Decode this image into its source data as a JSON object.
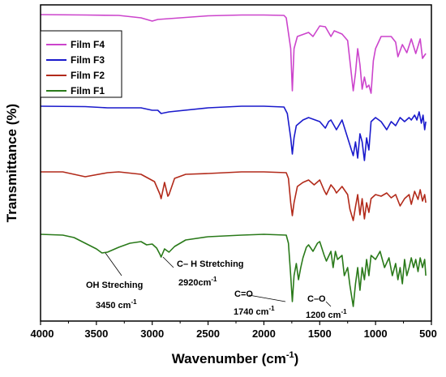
{
  "chart_data": {
    "type": "line",
    "xlabel": "Wavenumber (cm",
    "xlabel_sup": "-1",
    "xlabel_end": ")",
    "ylabel": "Transmittance (%)",
    "xlim": [
      4000,
      500
    ],
    "x_reversed": true,
    "xticks": [
      4000,
      3500,
      3000,
      2500,
      2000,
      1500,
      1000,
      500
    ],
    "yticks_labeled": false,
    "grid": false,
    "legend_position": "top-left",
    "series": [
      {
        "name": "Film F4",
        "color": "#cc44cc",
        "points": [
          [
            4000,
            18
          ],
          [
            3600,
            18.5
          ],
          [
            3300,
            19
          ],
          [
            3100,
            22
          ],
          [
            3000,
            26
          ],
          [
            2950,
            24
          ],
          [
            2850,
            23
          ],
          [
            2500,
            19.5
          ],
          [
            2200,
            18.5
          ],
          [
            2000,
            18.5
          ],
          [
            1820,
            19
          ],
          [
            1800,
            22
          ],
          [
            1760,
            60
          ],
          [
            1745,
            112
          ],
          [
            1730,
            60
          ],
          [
            1700,
            45
          ],
          [
            1600,
            40
          ],
          [
            1560,
            45
          ],
          [
            1500,
            32
          ],
          [
            1450,
            33
          ],
          [
            1400,
            45
          ],
          [
            1370,
            38
          ],
          [
            1300,
            42
          ],
          [
            1250,
            50
          ],
          [
            1230,
            75
          ],
          [
            1200,
            112
          ],
          [
            1180,
            90
          ],
          [
            1160,
            60
          ],
          [
            1140,
            80
          ],
          [
            1120,
            110
          ],
          [
            1100,
            95
          ],
          [
            1080,
            108
          ],
          [
            1060,
            105
          ],
          [
            1040,
            115
          ],
          [
            1020,
            75
          ],
          [
            1000,
            60
          ],
          [
            950,
            45
          ],
          [
            900,
            45
          ],
          [
            860,
            45
          ],
          [
            820,
            52
          ],
          [
            800,
            70
          ],
          [
            760,
            55
          ],
          [
            720,
            65
          ],
          [
            680,
            48
          ],
          [
            640,
            66
          ],
          [
            600,
            48
          ],
          [
            580,
            72
          ],
          [
            550,
            66
          ]
        ]
      },
      {
        "name": "Film F3",
        "color": "#1a1acc",
        "points": [
          [
            4000,
            131
          ],
          [
            3600,
            131.5
          ],
          [
            3400,
            133
          ],
          [
            3300,
            133
          ],
          [
            3100,
            133
          ],
          [
            3000,
            136
          ],
          [
            2950,
            136
          ],
          [
            2920,
            140
          ],
          [
            2850,
            138
          ],
          [
            2500,
            133
          ],
          [
            2200,
            131
          ],
          [
            2000,
            131
          ],
          [
            1820,
            132
          ],
          [
            1790,
            140
          ],
          [
            1760,
            170
          ],
          [
            1745,
            190
          ],
          [
            1730,
            170
          ],
          [
            1710,
            155
          ],
          [
            1650,
            148
          ],
          [
            1600,
            145
          ],
          [
            1560,
            147
          ],
          [
            1500,
            150
          ],
          [
            1450,
            158
          ],
          [
            1420,
            150
          ],
          [
            1400,
            148
          ],
          [
            1350,
            160
          ],
          [
            1300,
            148
          ],
          [
            1250,
            170
          ],
          [
            1200,
            192
          ],
          [
            1180,
            175
          ],
          [
            1160,
            195
          ],
          [
            1140,
            165
          ],
          [
            1120,
            175
          ],
          [
            1100,
            198
          ],
          [
            1080,
            170
          ],
          [
            1060,
            185
          ],
          [
            1040,
            150
          ],
          [
            1000,
            145
          ],
          [
            950,
            150
          ],
          [
            900,
            160
          ],
          [
            860,
            150
          ],
          [
            820,
            155
          ],
          [
            780,
            145
          ],
          [
            740,
            150
          ],
          [
            700,
            145
          ],
          [
            680,
            148
          ],
          [
            650,
            142
          ],
          [
            630,
            148
          ],
          [
            610,
            138
          ],
          [
            590,
            152
          ],
          [
            575,
            142
          ],
          [
            560,
            160
          ],
          [
            550,
            150
          ]
        ]
      },
      {
        "name": "Film F2",
        "color": "#b22a1a",
        "points": [
          [
            4000,
            212
          ],
          [
            3800,
            212
          ],
          [
            3600,
            218
          ],
          [
            3400,
            213
          ],
          [
            3300,
            212
          ],
          [
            3100,
            215
          ],
          [
            2980,
            224
          ],
          [
            2930,
            240
          ],
          [
            2920,
            245
          ],
          [
            2890,
            225
          ],
          [
            2860,
            242
          ],
          [
            2850,
            240
          ],
          [
            2800,
            220
          ],
          [
            2700,
            215
          ],
          [
            2500,
            214
          ],
          [
            2200,
            212
          ],
          [
            2000,
            212
          ],
          [
            1800,
            213
          ],
          [
            1780,
            220
          ],
          [
            1760,
            250
          ],
          [
            1745,
            266
          ],
          [
            1730,
            250
          ],
          [
            1700,
            230
          ],
          [
            1650,
            225
          ],
          [
            1600,
            222
          ],
          [
            1550,
            228
          ],
          [
            1500,
            222
          ],
          [
            1460,
            235
          ],
          [
            1440,
            240
          ],
          [
            1400,
            228
          ],
          [
            1370,
            233
          ],
          [
            1350,
            238
          ],
          [
            1300,
            230
          ],
          [
            1250,
            240
          ],
          [
            1230,
            258
          ],
          [
            1200,
            272
          ],
          [
            1180,
            255
          ],
          [
            1160,
            240
          ],
          [
            1140,
            265
          ],
          [
            1120,
            245
          ],
          [
            1100,
            270
          ],
          [
            1080,
            250
          ],
          [
            1060,
            262
          ],
          [
            1040,
            245
          ],
          [
            1000,
            240
          ],
          [
            950,
            242
          ],
          [
            900,
            238
          ],
          [
            860,
            244
          ],
          [
            820,
            240
          ],
          [
            780,
            254
          ],
          [
            740,
            245
          ],
          [
            700,
            240
          ],
          [
            680,
            252
          ],
          [
            650,
            236
          ],
          [
            620,
            246
          ],
          [
            600,
            234
          ],
          [
            580,
            248
          ],
          [
            560,
            240
          ],
          [
            550,
            250
          ]
        ]
      },
      {
        "name": "Film F1",
        "color": "#2a7a1a",
        "points": [
          [
            4000,
            289
          ],
          [
            3800,
            290
          ],
          [
            3700,
            293
          ],
          [
            3600,
            300
          ],
          [
            3500,
            307
          ],
          [
            3450,
            312
          ],
          [
            3400,
            311
          ],
          [
            3300,
            305
          ],
          [
            3200,
            300
          ],
          [
            3100,
            298
          ],
          [
            3050,
            302
          ],
          [
            3000,
            301
          ],
          [
            2960,
            306
          ],
          [
            2930,
            314
          ],
          [
            2920,
            317
          ],
          [
            2890,
            307
          ],
          [
            2860,
            310
          ],
          [
            2850,
            311
          ],
          [
            2800,
            304
          ],
          [
            2700,
            296
          ],
          [
            2500,
            292
          ],
          [
            2200,
            290
          ],
          [
            2000,
            289
          ],
          [
            1800,
            290
          ],
          [
            1780,
            300
          ],
          [
            1760,
            340
          ],
          [
            1745,
            372
          ],
          [
            1730,
            340
          ],
          [
            1710,
            325
          ],
          [
            1690,
            345
          ],
          [
            1670,
            330
          ],
          [
            1650,
            318
          ],
          [
            1620,
            305
          ],
          [
            1600,
            302
          ],
          [
            1560,
            310
          ],
          [
            1520,
            300
          ],
          [
            1500,
            298
          ],
          [
            1460,
            315
          ],
          [
            1440,
            322
          ],
          [
            1400,
            310
          ],
          [
            1380,
            330
          ],
          [
            1360,
            310
          ],
          [
            1340,
            320
          ],
          [
            1300,
            315
          ],
          [
            1280,
            340
          ],
          [
            1250,
            330
          ],
          [
            1230,
            352
          ],
          [
            1200,
            378
          ],
          [
            1180,
            350
          ],
          [
            1160,
            330
          ],
          [
            1140,
            358
          ],
          [
            1120,
            330
          ],
          [
            1100,
            345
          ],
          [
            1080,
            320
          ],
          [
            1060,
            340
          ],
          [
            1040,
            315
          ],
          [
            1000,
            320
          ],
          [
            960,
            310
          ],
          [
            920,
            330
          ],
          [
            880,
            318
          ],
          [
            850,
            340
          ],
          [
            820,
            325
          ],
          [
            800,
            345
          ],
          [
            780,
            330
          ],
          [
            760,
            350
          ],
          [
            740,
            320
          ],
          [
            720,
            340
          ],
          [
            700,
            330
          ],
          [
            680,
            318
          ],
          [
            660,
            330
          ],
          [
            640,
            320
          ],
          [
            620,
            335
          ],
          [
            600,
            318
          ],
          [
            580,
            330
          ],
          [
            560,
            320
          ],
          [
            550,
            340
          ]
        ]
      }
    ],
    "annotations": [
      {
        "label": "OH Streching",
        "value": "3450 cm",
        "sup": "-1"
      },
      {
        "label": "C– H Stretching",
        "value": "2920cm",
        "sup": "-1"
      },
      {
        "label": "C=O",
        "value": "1740 cm",
        "sup": "-1"
      },
      {
        "label": "C–O",
        "value": "1200 cm",
        "sup": "-1"
      }
    ]
  }
}
